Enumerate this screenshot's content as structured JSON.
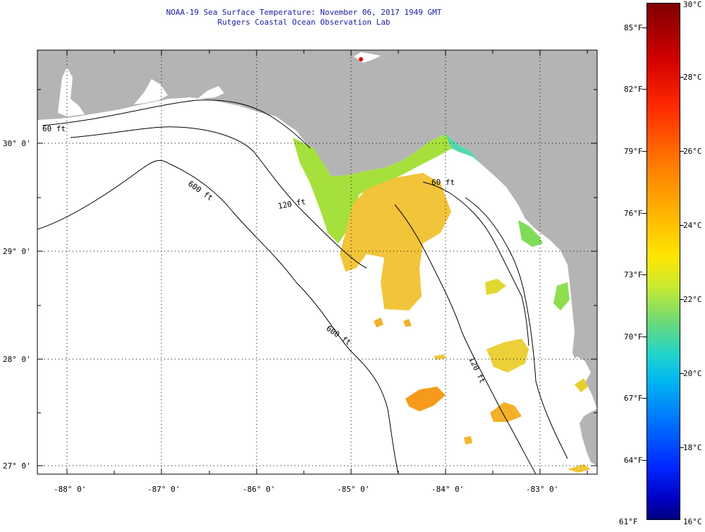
{
  "title": {
    "line1": "NOAA-19 Sea Surface Temperature:  November 06, 2017 1949 GMT",
    "line2": "Rutgers Coastal Ocean Observation Lab"
  },
  "map": {
    "lat_labels": [
      "30° 0'",
      "29° 0'",
      "28° 0'",
      "27° 0'"
    ],
    "lon_labels": [
      "-88° 0'",
      "-87° 0'",
      "-86° 0'",
      "-85° 0'",
      "-84° 0'",
      "-83° 0'"
    ],
    "contour_labels": [
      "60 ft",
      "120 ft",
      "600 ft",
      "600 ft",
      "60 ft",
      "120 ft"
    ],
    "land_color": "#b4b4b4",
    "ocean_color": "#ffffff"
  },
  "colorbar": {
    "fahrenheit_labels": [
      "85°F",
      "82°F",
      "79°F",
      "76°F",
      "73°F",
      "70°F",
      "67°F",
      "64°F",
      "61°F"
    ],
    "celsius_labels": [
      "30°C",
      "28°C",
      "26°C",
      "24°C",
      "22°C",
      "20°C",
      "18°C",
      "16°C"
    ],
    "range_celsius": [
      16,
      30
    ],
    "range_fahrenheit": [
      61,
      86
    ]
  }
}
